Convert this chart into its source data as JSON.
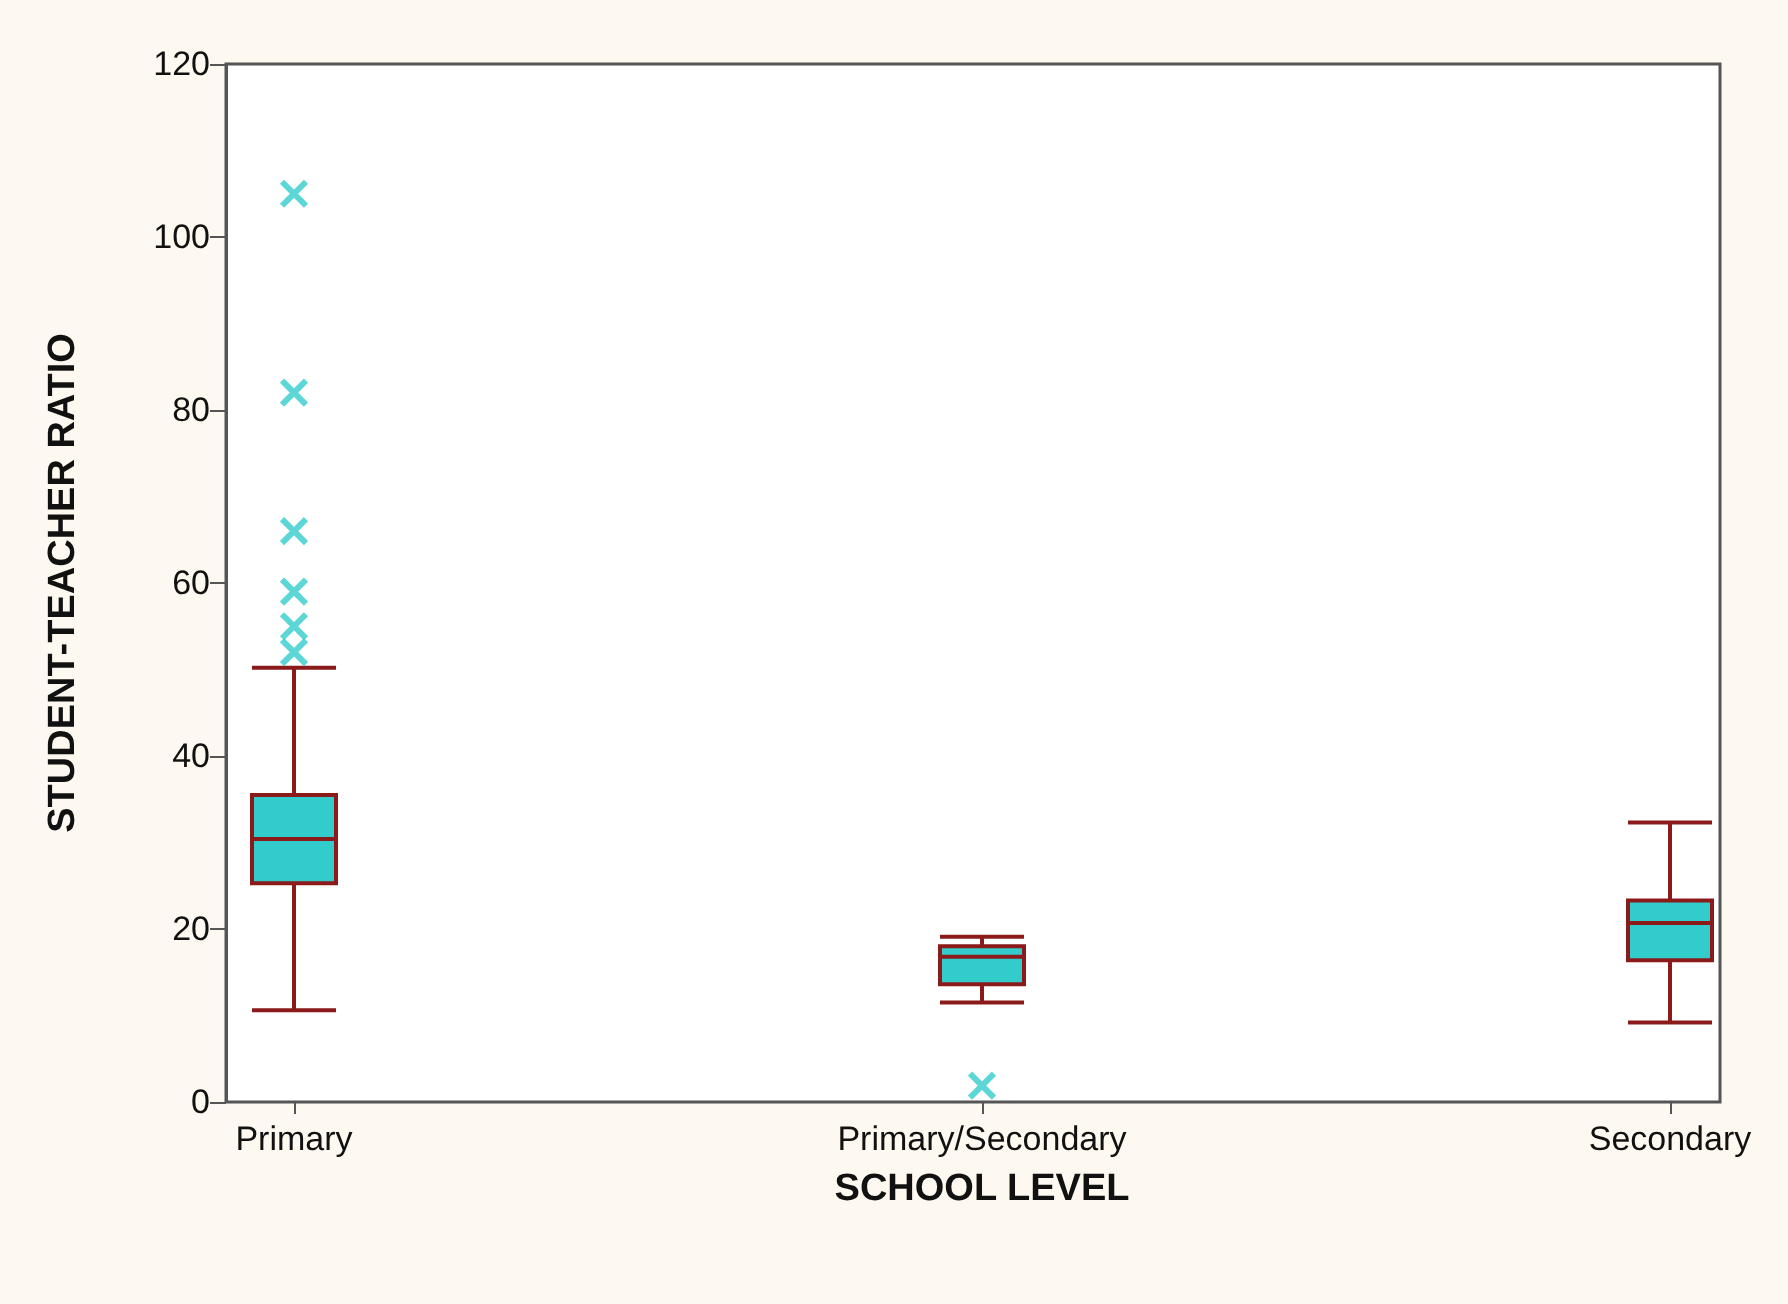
{
  "chart_data": {
    "type": "box",
    "xlabel": "SCHOOL LEVEL",
    "ylabel": "STUDENT-TEACHER RATIO",
    "categories": [
      "Primary",
      "Primary/Secondary",
      "Secondary"
    ],
    "boxes": [
      {
        "low": 10.6,
        "q1": 25.3,
        "median": 30.4,
        "q3": 35.5,
        "high": 50.2,
        "outliers": [
          105,
          82,
          66,
          59,
          55,
          52
        ]
      },
      {
        "low": 11.5,
        "q1": 13.6,
        "median": 16.8,
        "q3": 18,
        "high": 19.1,
        "outliers": [
          1.9
        ]
      },
      {
        "low": 9.2,
        "q1": 16.4,
        "median": 20.7,
        "q3": 23.3,
        "high": 32.3
      }
    ],
    "color": "#33cccc",
    "marker": "cross",
    "ylim": [
      0,
      120
    ],
    "yticks": [
      0,
      20,
      40,
      60,
      80,
      100,
      120
    ],
    "grid": false
  }
}
